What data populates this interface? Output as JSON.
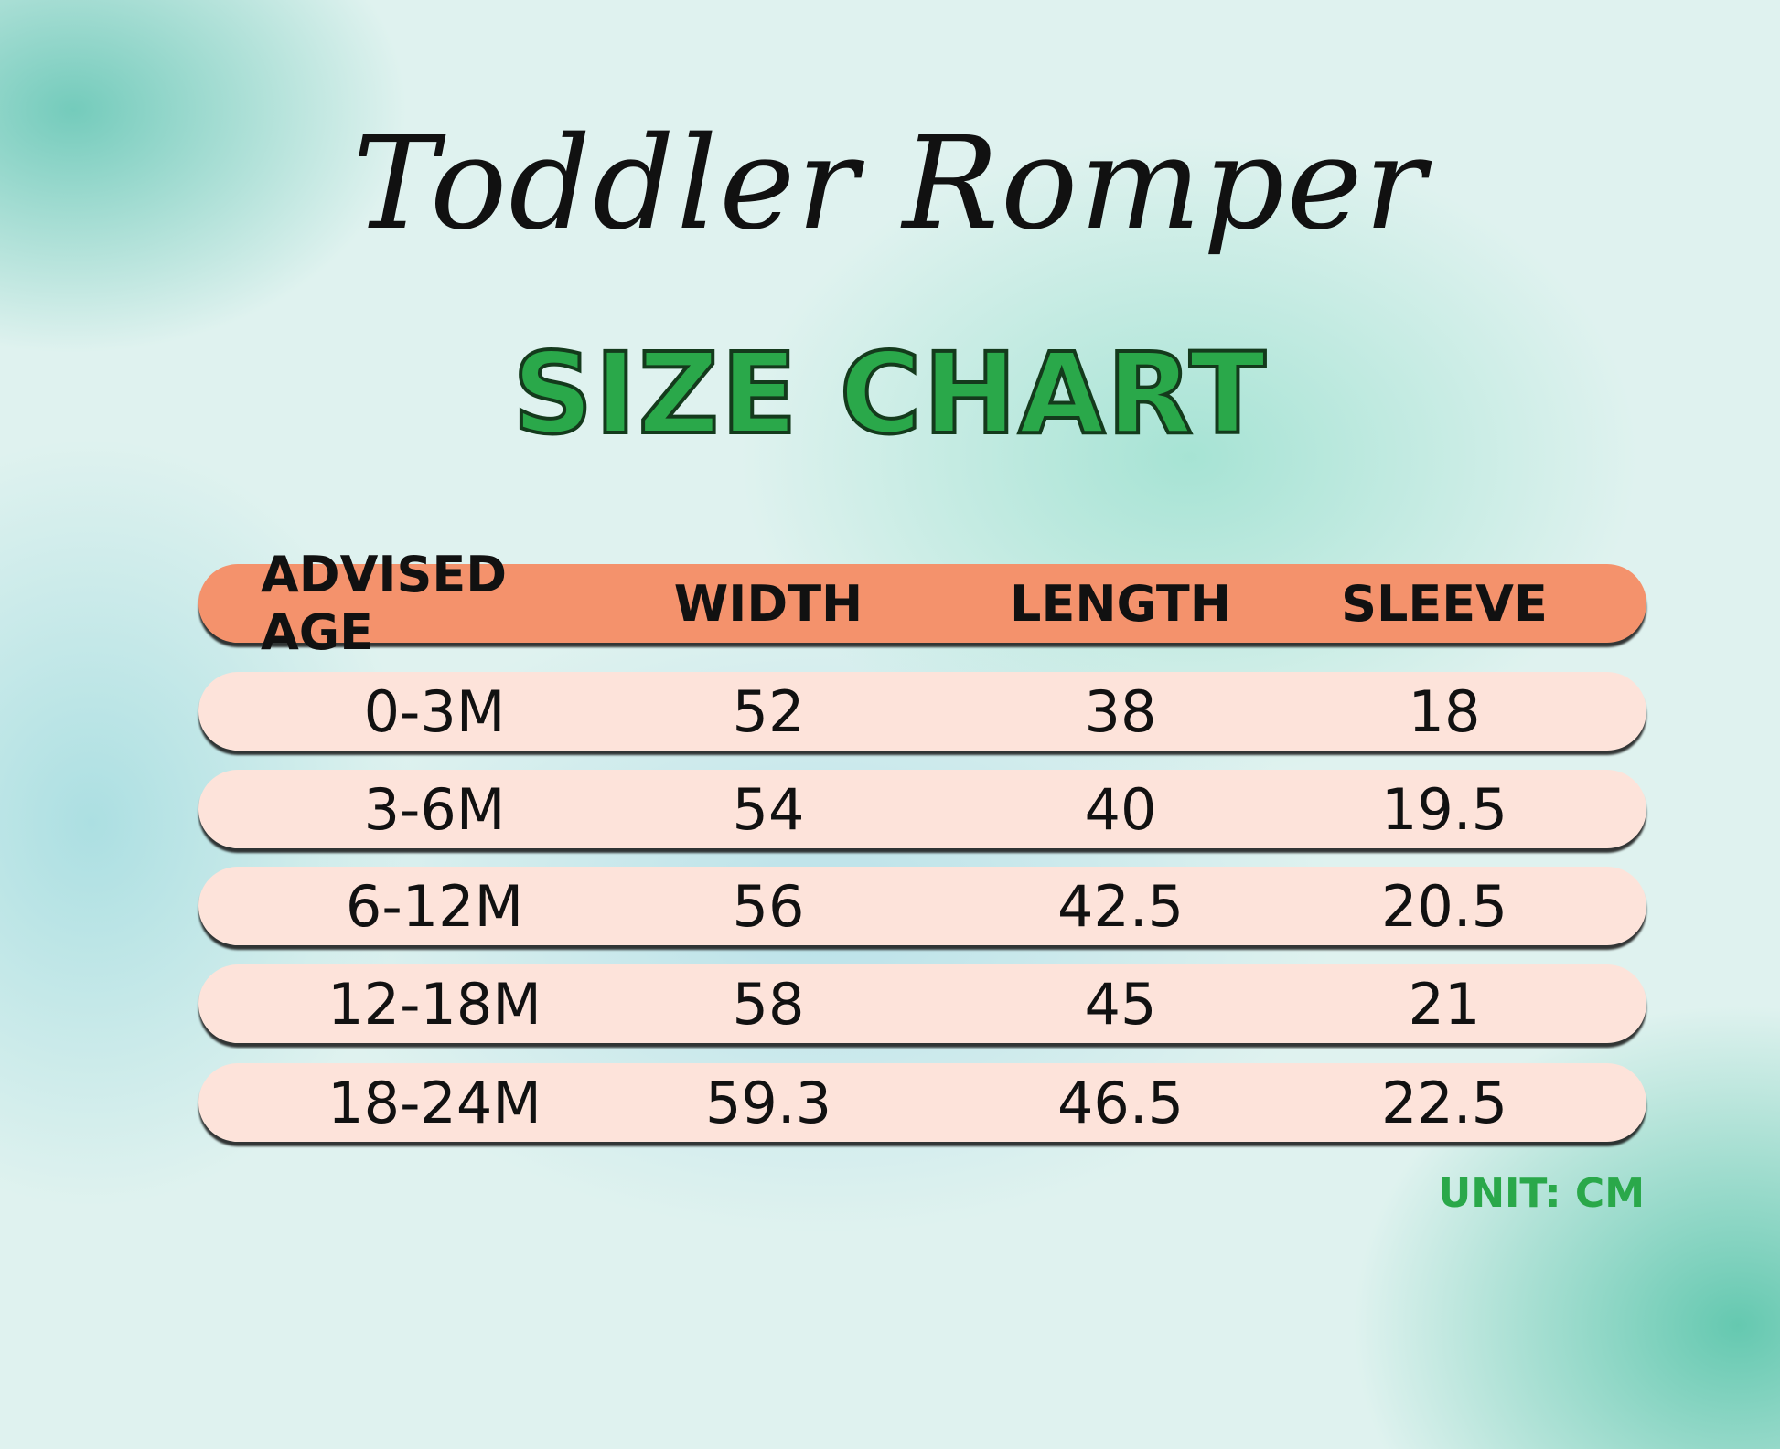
{
  "chart_data": {
    "type": "table",
    "title": "Toddler Romper",
    "subtitle": "SIZE CHART",
    "columns": [
      "ADVISED AGE",
      "WIDTH",
      "LENGTH",
      "SLEEVE"
    ],
    "rows": [
      [
        "0-3M",
        "52",
        "38",
        "18"
      ],
      [
        "3-6M",
        "54",
        "40",
        "19.5"
      ],
      [
        "6-12M",
        "56",
        "42.5",
        "20.5"
      ],
      [
        "12-18M",
        "58",
        "45",
        "21"
      ],
      [
        "18-24M",
        "59.3",
        "46.5",
        "22.5"
      ]
    ],
    "unit_note": "UNIT: CM"
  },
  "colors": {
    "header": "#f4926c",
    "row": "#fde3da",
    "accent_green": "#2aa84a"
  }
}
